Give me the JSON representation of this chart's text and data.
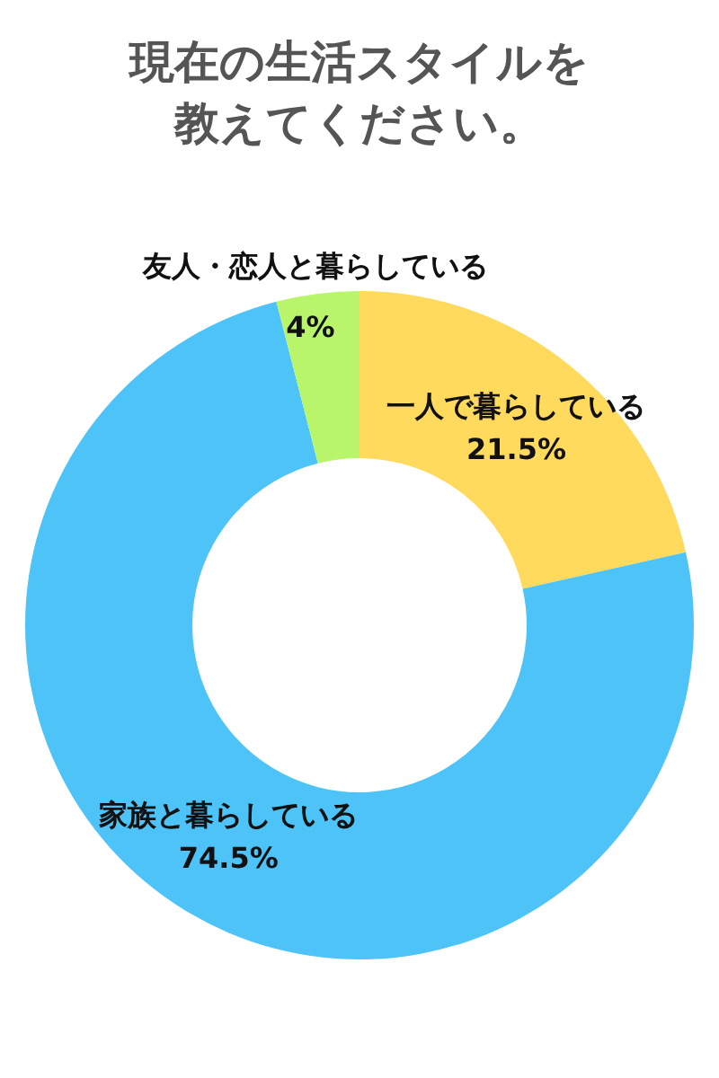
{
  "chart_data": {
    "type": "donut",
    "title": "現在の生活スタイルを教えてください。",
    "categories": [
      "一人で暮らしている",
      "家族と暮らしている",
      "友人・恋人と暮らしている"
    ],
    "values": [
      21.5,
      74.5,
      4
    ],
    "colors": [
      "#ffda5c",
      "#4dc3f7",
      "#b9f56b"
    ],
    "value_labels": [
      "21.5%",
      "74.5%",
      "4%"
    ],
    "legend": false
  }
}
